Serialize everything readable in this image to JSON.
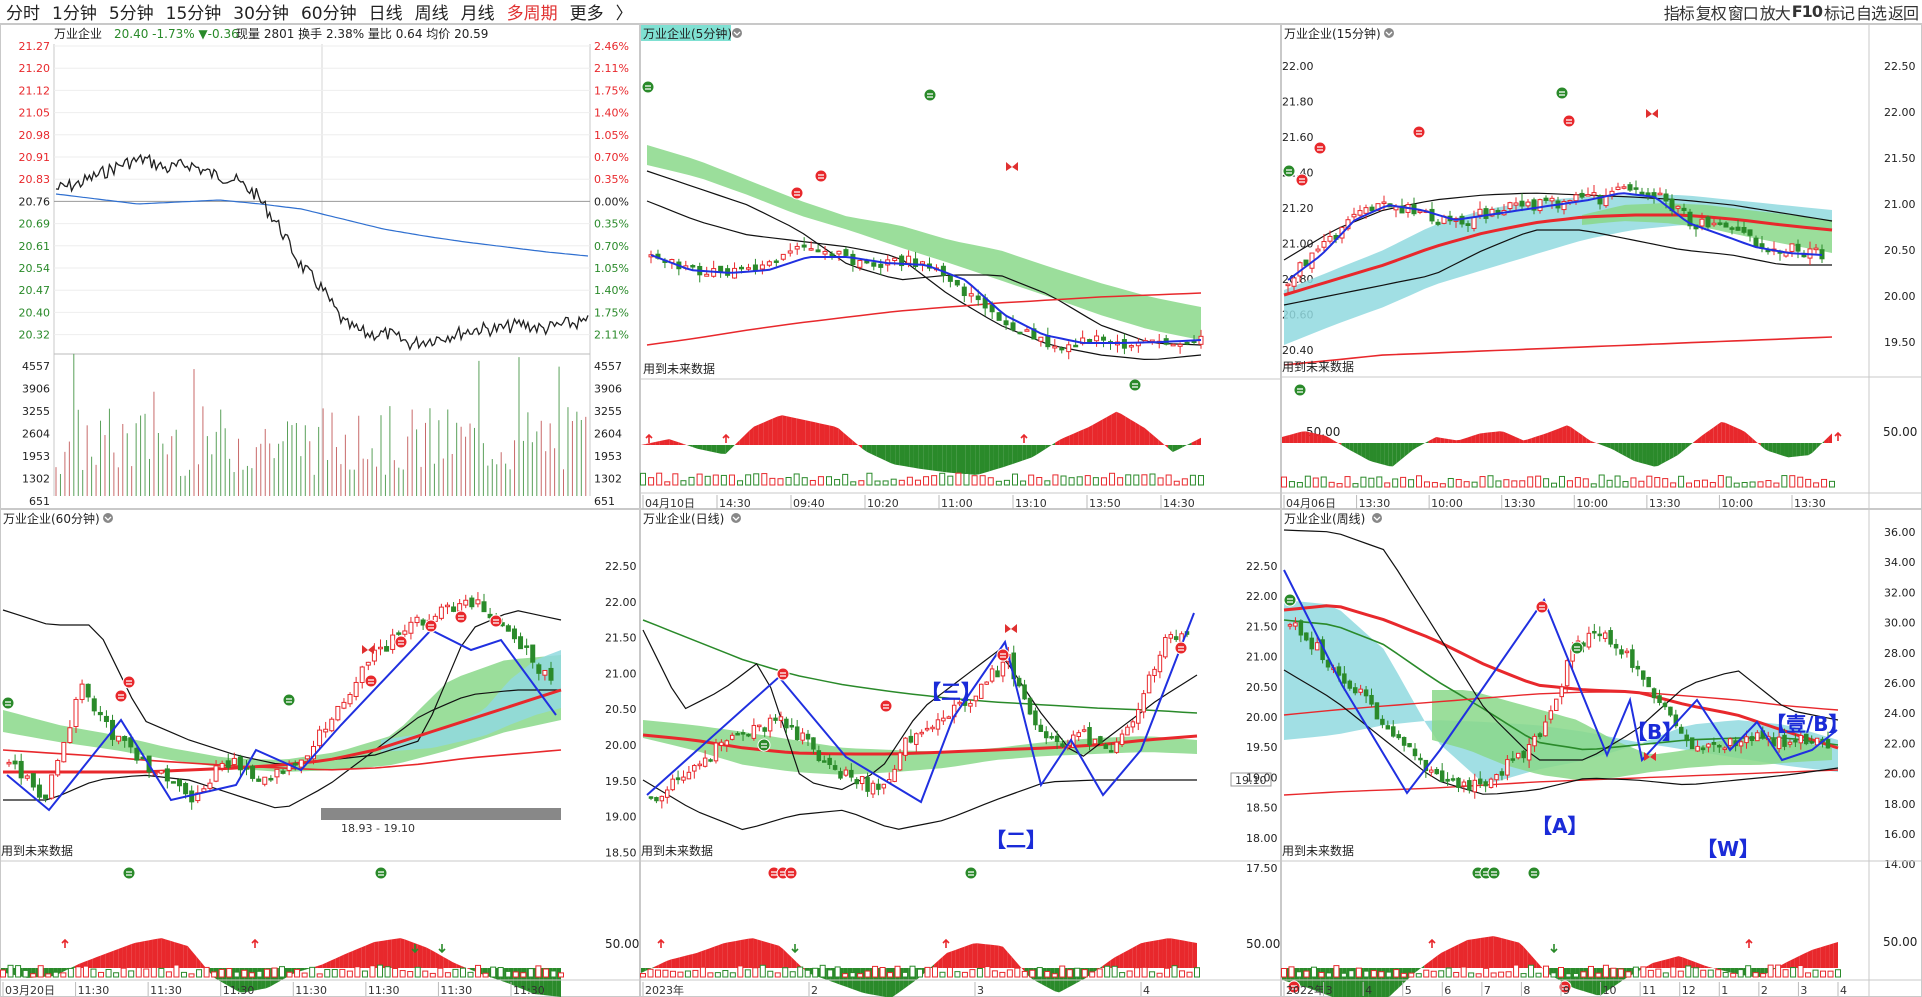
{
  "toolbar": {
    "periods": [
      "分时",
      "1分钟",
      "5分钟",
      "15分钟",
      "30分钟",
      "60分钟",
      "日线",
      "周线",
      "月线",
      "多周期",
      "更多"
    ],
    "active_period": "多周期",
    "more_arrow": "〉",
    "tools": [
      "指标",
      "复权",
      "窗口",
      "放大",
      "F10",
      "标记",
      "自选",
      "返回"
    ]
  },
  "colors": {
    "up": "#e8282c",
    "down": "#2a8a2a",
    "avg": "#2060d0",
    "price": "#202020",
    "grid": "#d8d8d8",
    "teal": "#90d9df",
    "green_band": "#8ad88a",
    "zigzag": "#2030e0"
  },
  "icons": {
    "gear": "gear-icon",
    "dropdown": "chevron-down-icon",
    "signal_red": "red-signal-icon",
    "signal_green": "green-signal-icon",
    "butterfly": "butterfly-icon",
    "arrow_up": "arrow-up-icon",
    "arrow_down": "arrow-down-icon"
  },
  "panels": {
    "intraday": {
      "name": "万业企业",
      "quote": "20.40 -1.73% ▼-0.36",
      "stats": "现量 2801 换手 2.38% 量比 0.64 均价 20.59",
      "price_ticks": [
        "21.27",
        "21.20",
        "21.12",
        "21.05",
        "20.98",
        "20.91",
        "20.83",
        "20.76",
        "20.69",
        "20.61",
        "20.54",
        "20.47",
        "20.40",
        "20.32"
      ],
      "pct_ticks": [
        "2.46%",
        "2.11%",
        "1.75%",
        "1.40%",
        "1.05%",
        "0.70%",
        "0.35%",
        "0.00%",
        "0.35%",
        "0.70%",
        "1.05%",
        "1.40%",
        "1.75%",
        "2.11%"
      ],
      "vol_ticks": [
        "4557",
        "3906",
        "3255",
        "2604",
        "1953",
        "1302",
        "651"
      ]
    },
    "m5": {
      "title": "万业企业(5分钟)",
      "future_note": "用到未来数据",
      "time_labels": [
        "04月10日",
        "14:30",
        "09:40",
        "10:20",
        "11:00",
        "13:10",
        "13:50",
        "14:30"
      ]
    },
    "m15": {
      "title": "万业企业(15分钟)",
      "future_note": "用到未来数据",
      "left_ticks": [
        "22.00",
        "21.80",
        "21.60",
        "21.40",
        "21.20",
        "21.00",
        "20.80",
        "20.60",
        "20.40"
      ],
      "right_ticks": [
        "22.50",
        "22.00",
        "21.50",
        "21.00",
        "20.50",
        "20.00",
        "19.50"
      ],
      "osc_left": "50.00",
      "osc_right": "50.00",
      "time_labels": [
        "04月06日",
        "13:30",
        "10:00",
        "13:30",
        "10:00",
        "13:30",
        "10:00",
        "13:30"
      ]
    },
    "m60": {
      "title": "万业企业(60分钟)",
      "future_note": "用到未来数据",
      "range_note": "18.93 - 19.10",
      "time_labels": [
        "03月20日",
        "11:30",
        "11:30",
        "11:30",
        "11:30",
        "11:30",
        "11:30",
        "11:30"
      ]
    },
    "daily": {
      "title": "万业企业(日线)",
      "future_note": "用到未来数据",
      "left_ticks": [
        "22.50",
        "22.00",
        "21.50",
        "21.00",
        "20.50",
        "20.00",
        "19.50",
        "19.00",
        "18.50"
      ],
      "osc_left": "50.00",
      "price_tag": "19.10",
      "wave_labels": [
        "【三】",
        "【二】"
      ],
      "time_labels": [
        "2023年",
        "2",
        "3",
        "4"
      ]
    },
    "weekly": {
      "title": "万业企业(周线)",
      "future_note": "用到未来数据",
      "left_ticks": [
        "22.50",
        "22.00",
        "21.50",
        "21.00",
        "20.50",
        "20.00",
        "19.50",
        "19.00",
        "18.50",
        "18.00",
        "17.50"
      ],
      "right_ticks": [
        "36.00",
        "34.00",
        "32.00",
        "30.00",
        "28.00",
        "26.00",
        "24.00",
        "22.00",
        "20.00",
        "18.00",
        "16.00",
        "14.00"
      ],
      "osc_left": "50.00",
      "osc_right": "50.00",
      "wave_labels": [
        "【B】",
        "【壹/B】",
        "【A】",
        "【W】"
      ],
      "time_labels": [
        "2022年",
        "3",
        "4",
        "5",
        "6",
        "7",
        "8",
        "9",
        "10",
        "11",
        "12",
        "1",
        "2",
        "3",
        "4"
      ]
    }
  }
}
